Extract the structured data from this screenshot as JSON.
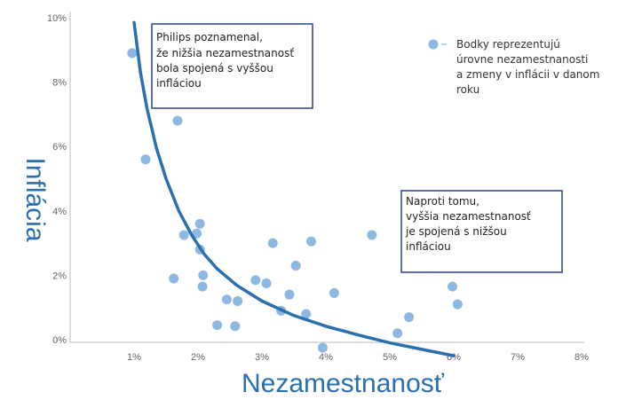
{
  "chart_data": {
    "type": "scatter",
    "xlabel": "Nezamestnanosť",
    "ylabel": "Inflácia",
    "xlim": [
      0,
      8
    ],
    "ylim": [
      0,
      10
    ],
    "x_ticks": [
      "1%",
      "2%",
      "3%",
      "4%",
      "5%",
      "6%",
      "7%",
      "8%"
    ],
    "y_ticks": [
      "0%",
      "2%",
      "4%",
      "6%",
      "8%",
      "10%"
    ],
    "points": [
      {
        "x": 0.97,
        "y": 8.9
      },
      {
        "x": 1.18,
        "y": 5.6
      },
      {
        "x": 1.68,
        "y": 6.8
      },
      {
        "x": 1.78,
        "y": 3.25
      },
      {
        "x": 1.98,
        "y": 3.3
      },
      {
        "x": 2.03,
        "y": 3.6
      },
      {
        "x": 2.03,
        "y": 2.8
      },
      {
        "x": 1.62,
        "y": 1.9
      },
      {
        "x": 2.08,
        "y": 2.0
      },
      {
        "x": 2.07,
        "y": 1.65
      },
      {
        "x": 2.45,
        "y": 1.25
      },
      {
        "x": 2.62,
        "y": 1.2
      },
      {
        "x": 2.3,
        "y": 0.45
      },
      {
        "x": 2.58,
        "y": 0.42
      },
      {
        "x": 2.9,
        "y": 1.85
      },
      {
        "x": 3.07,
        "y": 1.75
      },
      {
        "x": 3.17,
        "y": 3.0
      },
      {
        "x": 3.3,
        "y": 0.9
      },
      {
        "x": 3.43,
        "y": 1.4
      },
      {
        "x": 3.53,
        "y": 2.3
      },
      {
        "x": 3.69,
        "y": 0.8
      },
      {
        "x": 3.77,
        "y": 3.05
      },
      {
        "x": 3.95,
        "y": -0.25
      },
      {
        "x": 4.13,
        "y": 1.45
      },
      {
        "x": 4.72,
        "y": 3.25
      },
      {
        "x": 5.12,
        "y": 0.2
      },
      {
        "x": 5.3,
        "y": 0.7
      },
      {
        "x": 5.98,
        "y": 1.65
      },
      {
        "x": 6.06,
        "y": 1.1
      }
    ],
    "curve": [
      [
        1.0,
        9.85
      ],
      [
        1.1,
        8.3
      ],
      [
        1.2,
        7.2
      ],
      [
        1.35,
        5.95
      ],
      [
        1.5,
        5.0
      ],
      [
        1.7,
        4.0
      ],
      [
        1.9,
        3.25
      ],
      [
        2.1,
        2.65
      ],
      [
        2.3,
        2.2
      ],
      [
        2.6,
        1.7
      ],
      [
        3.0,
        1.2
      ],
      [
        3.5,
        0.75
      ],
      [
        4.0,
        0.42
      ],
      [
        4.5,
        0.15
      ],
      [
        5.0,
        -0.1
      ],
      [
        5.5,
        -0.3
      ],
      [
        6.0,
        -0.5
      ]
    ],
    "annotations": [
      {
        "lines": [
          "Philips poznamenal,",
          "že nižšia nezamestnanosť",
          "bola spojená s vyššou",
          "infláciou"
        ]
      },
      {
        "lines": [
          "Naproti tomu,",
          "vyššia nezamestnanosť",
          "je spojená s nižšou",
          "infláciou"
        ]
      }
    ],
    "legend": {
      "lines": [
        "Bodky reprezentujú",
        "úrovne nezamestnanosti",
        "a zmeny v inflácii v danom",
        "roku"
      ],
      "placement": "top-right"
    },
    "colors": {
      "points": "#8cb8e3",
      "curve": "#2a6fb0",
      "axis_title": "#2a6fb0",
      "annotation_border": "#2c3f8c",
      "axis": "#bbbbbb"
    }
  }
}
